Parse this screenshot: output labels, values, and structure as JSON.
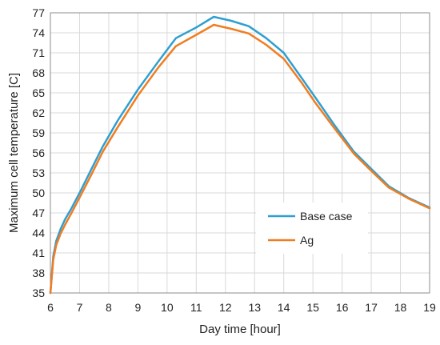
{
  "chart_data": {
    "type": "line",
    "title": "",
    "xlabel": "Day time [hour]",
    "ylabel": "Maximum cell temperature [C]",
    "xlim": [
      6,
      19
    ],
    "ylim": [
      35,
      77
    ],
    "xticks": [
      6,
      7,
      8,
      9,
      10,
      11,
      12,
      13,
      14,
      15,
      16,
      17,
      18,
      19
    ],
    "yticks": [
      35,
      38,
      41,
      44,
      47,
      50,
      53,
      56,
      59,
      62,
      65,
      68,
      71,
      74,
      77
    ],
    "grid": true,
    "legend": "center-right",
    "series": [
      {
        "name": "Base case",
        "color": "#2e9fd0",
        "x": [
          6.0,
          6.1,
          6.2,
          6.35,
          6.5,
          6.7,
          7.0,
          7.4,
          7.8,
          8.3,
          9.0,
          9.7,
          10.3,
          11.0,
          11.6,
          12.2,
          12.8,
          13.4,
          14.0,
          14.6,
          15.1,
          15.7,
          16.4,
          17.0,
          17.6,
          18.3,
          19.0
        ],
        "y": [
          35.0,
          40.5,
          42.8,
          44.6,
          46.0,
          47.5,
          50.0,
          53.5,
          57.0,
          60.8,
          65.5,
          69.7,
          73.2,
          74.8,
          76.4,
          75.8,
          75.0,
          73.2,
          71.0,
          67.3,
          64.2,
          60.4,
          56.2,
          53.6,
          51.0,
          49.2,
          47.8
        ]
      },
      {
        "name": "Ag",
        "color": "#ef7d22",
        "x": [
          6.0,
          6.1,
          6.2,
          6.35,
          6.5,
          6.7,
          7.0,
          7.4,
          7.8,
          8.3,
          9.0,
          9.7,
          10.3,
          11.0,
          11.6,
          12.2,
          12.8,
          13.4,
          14.0,
          14.6,
          15.1,
          15.7,
          16.4,
          17.0,
          17.6,
          18.3,
          19.0
        ],
        "y": [
          35.0,
          40.0,
          42.2,
          43.9,
          45.2,
          46.8,
          49.3,
          52.7,
          56.2,
          59.8,
          64.6,
          68.8,
          72.0,
          73.7,
          75.2,
          74.6,
          73.9,
          72.2,
          70.1,
          66.6,
          63.4,
          59.9,
          55.9,
          53.3,
          50.8,
          49.1,
          47.7
        ]
      }
    ]
  }
}
